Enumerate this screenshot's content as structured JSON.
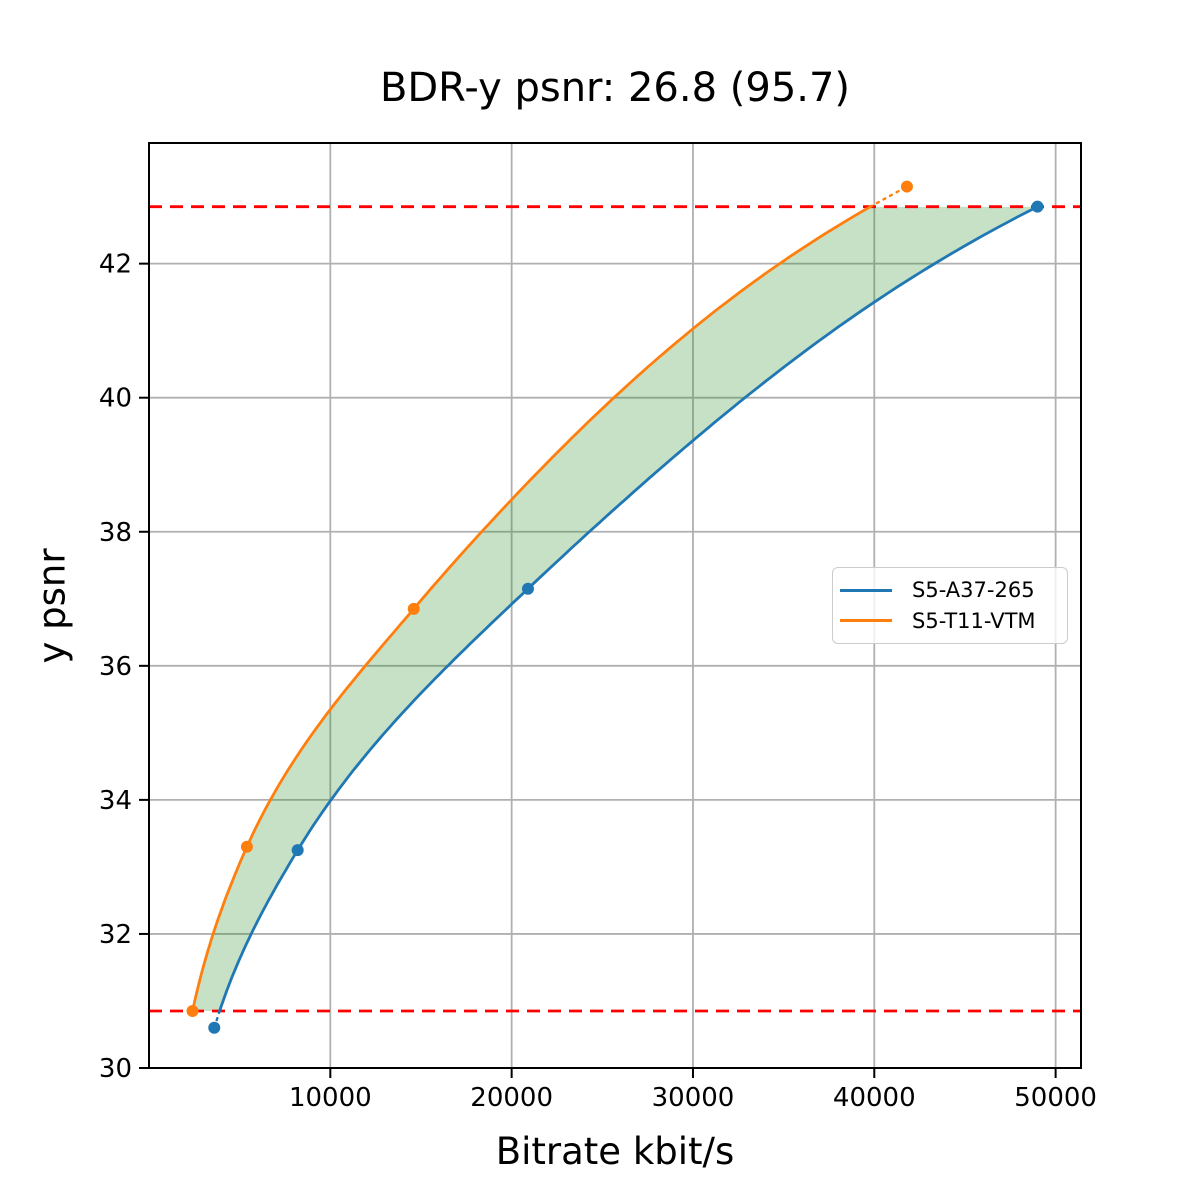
{
  "chart_data": {
    "type": "line",
    "title": "BDR-y psnr: 26.8 (95.7)",
    "xlabel": "Bitrate kbit/s",
    "ylabel": "y psnr",
    "xlim": [
      0,
      51400
    ],
    "ylim": [
      30,
      43.8
    ],
    "x_ticks": [
      10000,
      20000,
      30000,
      40000,
      50000
    ],
    "y_ticks": [
      30,
      32,
      34,
      36,
      38,
      40,
      42
    ],
    "grid": true,
    "grid_color": "#b0b0b0",
    "axis_color": "#000000",
    "legend_position": "right-center",
    "series": [
      {
        "name": "S5-A37-265",
        "color": "#1f77b4",
        "points": [
          [
            3600,
            30.6
          ],
          [
            8200,
            33.25
          ],
          [
            20900,
            37.15
          ],
          [
            49000,
            42.85
          ]
        ]
      },
      {
        "name": "S5-T11-VTM",
        "color": "#ff7f0e",
        "points": [
          [
            2400,
            30.85
          ],
          [
            5400,
            33.3
          ],
          [
            14600,
            36.85
          ],
          [
            41800,
            43.15
          ]
        ]
      }
    ],
    "bd_overlap": {
      "psnr_low": 30.85,
      "psnr_high": 42.85,
      "boundary_color": "#ff0000",
      "fill_color": "#228b22",
      "fill_opacity": 0.26
    }
  }
}
